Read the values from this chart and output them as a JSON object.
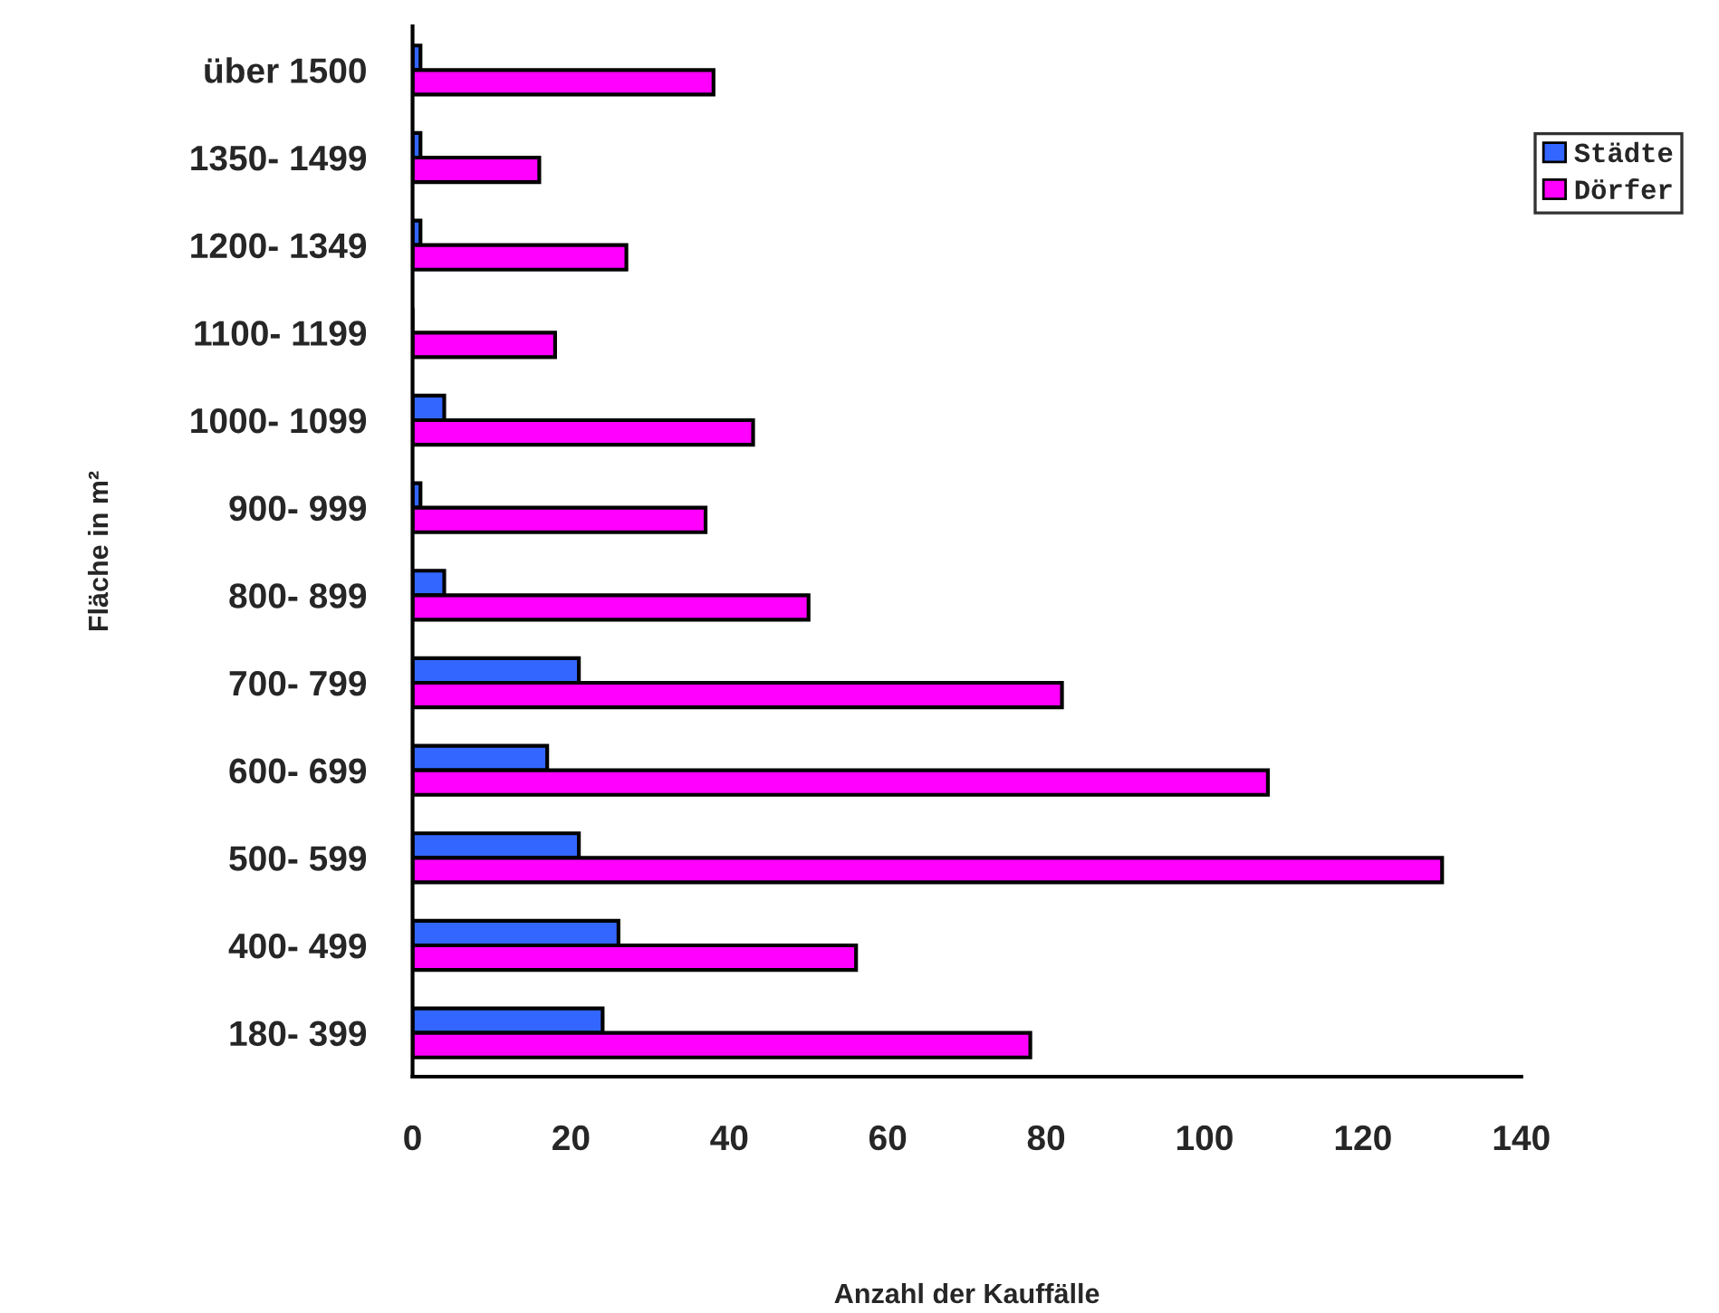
{
  "chart_data": {
    "type": "bar",
    "orientation": "horizontal",
    "xlabel": "Anzahl der Kauffälle",
    "ylabel": "Fläche in m²",
    "categories": [
      "über 1500",
      "1350- 1499",
      "1200- 1349",
      "1100- 1199",
      "1000- 1099",
      "900- 999",
      "800- 899",
      "700- 799",
      "600- 699",
      "500- 599",
      "400- 499",
      "180- 399"
    ],
    "series": [
      {
        "name": "Städte",
        "color": "#3366ff",
        "values": [
          1,
          1,
          1,
          0,
          4,
          1,
          4,
          21,
          17,
          21,
          26,
          24
        ]
      },
      {
        "name": "Dörfer",
        "color": "#ff00ff",
        "values": [
          38,
          16,
          27,
          18,
          43,
          37,
          50,
          82,
          108,
          130,
          56,
          78
        ]
      }
    ],
    "xlim": [
      0,
      140
    ],
    "xticks": [
      0,
      20,
      40,
      60,
      80,
      100,
      120,
      140
    ],
    "grid": false,
    "legend": "right"
  }
}
